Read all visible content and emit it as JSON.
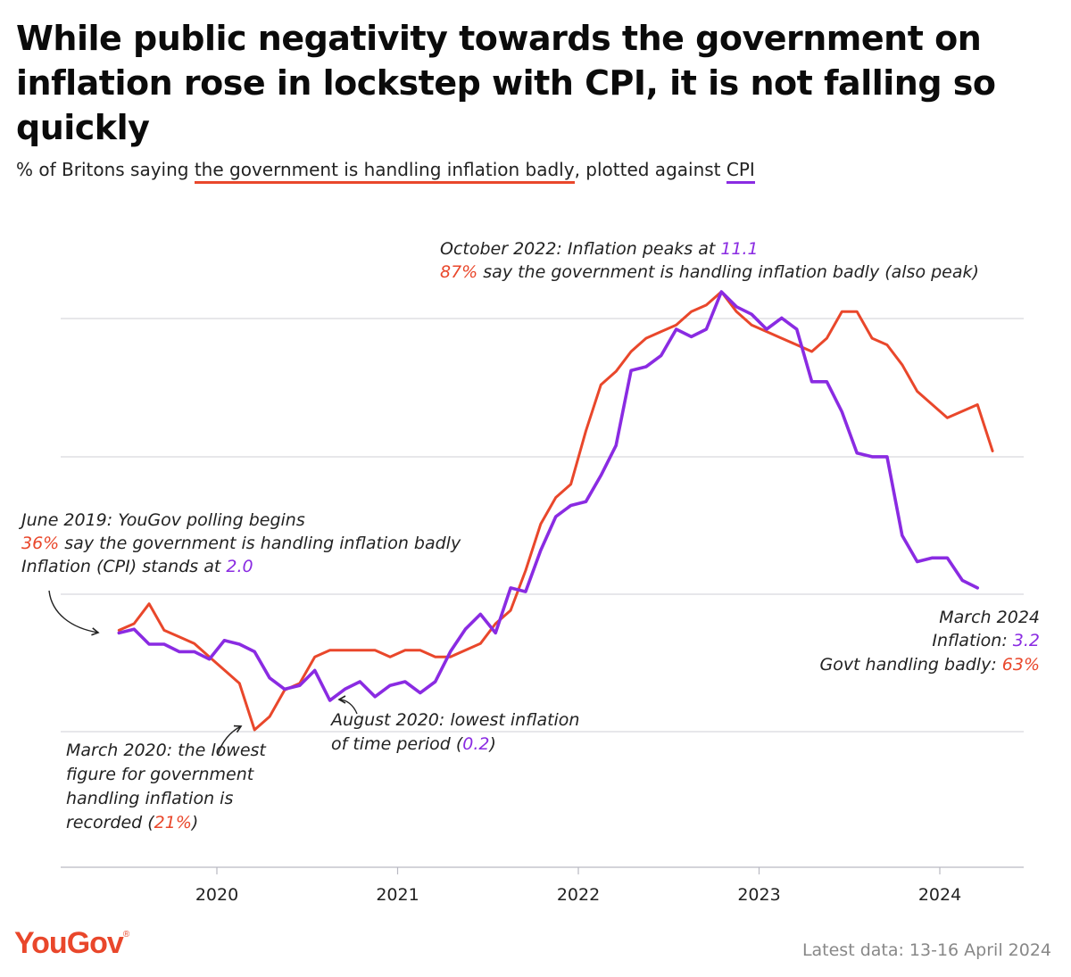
{
  "title": "While public negativity towards the government on inflation rose in lockstep with CPI, it is not falling so quickly",
  "subtitle": {
    "prefix": "% of Britons saying ",
    "series_red": "the government is handling inflation badly",
    "middle": ", plotted against ",
    "series_purple": "CPI"
  },
  "colors": {
    "red": "#e9472b",
    "purple": "#8a2be2",
    "grid": "#cfcfd6"
  },
  "annotations": {
    "peak": {
      "line1_prefix": "October 2022: Inflation peaks at ",
      "line1_value": "11.1",
      "line2_value": "87%",
      "line2_suffix": " say the government is handling inflation badly (also peak)"
    },
    "start": {
      "line1": "June 2019: YouGov polling begins",
      "line2_value": "36%",
      "line2_suffix": " say the government is handling inflation badly",
      "line3_prefix": "Inflation (CPI) stands at ",
      "line3_value": "2.0"
    },
    "march2020": {
      "line1": "March 2020: the lowest",
      "line2": "figure for government",
      "line3": "handling inflation is",
      "line4_prefix": "recorded (",
      "line4_value": "21%",
      "line4_suffix": ")"
    },
    "august2020": {
      "line1": "August 2020: lowest inflation",
      "line2_prefix": "of time period (",
      "line2_value": "0.2",
      "line2_suffix": ")"
    },
    "latest": {
      "line1": "March 2024",
      "line2_prefix": "Inflation: ",
      "line2_value": "3.2",
      "line3_prefix": "Govt handling badly: ",
      "line3_value": "63%"
    }
  },
  "logo": "YouGov",
  "footer": "Latest data: 13-16 April 2024",
  "chart_data": {
    "type": "line",
    "x_ticks": [
      "2020",
      "2021",
      "2022",
      "2023",
      "2024"
    ],
    "xlim": [
      "2019-03",
      "2024-07"
    ],
    "grid": true,
    "legend": "none",
    "series": [
      {
        "color": "#e9472b",
        "x": [
          "2019-06",
          "2019-07",
          "2019-08",
          "2019-09",
          "2019-10",
          "2019-11",
          "2019-12",
          "2020-01",
          "2020-02",
          "2020-03",
          "2020-04",
          "2020-05",
          "2020-06",
          "2020-07",
          "2020-08",
          "2020-09",
          "2020-10",
          "2020-11",
          "2020-12",
          "2021-01",
          "2021-02",
          "2021-03",
          "2021-04",
          "2021-05",
          "2021-06",
          "2021-07",
          "2021-08",
          "2021-09",
          "2021-10",
          "2021-11",
          "2021-12",
          "2022-01",
          "2022-02",
          "2022-03",
          "2022-04",
          "2022-05",
          "2022-06",
          "2022-07",
          "2022-08",
          "2022-09",
          "2022-10",
          "2022-11",
          "2022-12",
          "2023-01",
          "2023-02",
          "2023-03",
          "2023-04",
          "2023-05",
          "2023-06",
          "2023-07",
          "2023-08",
          "2023-09",
          "2023-10",
          "2023-11",
          "2023-12",
          "2024-01",
          "2024-02",
          "2024-03",
          "2024-04"
        ],
        "y": [
          36,
          37,
          40,
          36,
          35,
          34,
          32,
          30,
          28,
          21,
          23,
          27,
          28,
          32,
          33,
          33,
          33,
          33,
          32,
          33,
          33,
          32,
          32,
          33,
          34,
          37,
          39,
          45,
          52,
          56,
          58,
          66,
          73,
          75,
          78,
          80,
          81,
          82,
          84,
          85,
          87,
          84,
          82,
          81,
          80,
          79,
          78,
          80,
          84,
          84,
          80,
          79,
          76,
          72,
          70,
          68,
          69,
          70,
          63
        ]
      },
      {
        "color": "#8a2be2",
        "x": [
          "2019-06",
          "2019-07",
          "2019-08",
          "2019-09",
          "2019-10",
          "2019-11",
          "2019-12",
          "2020-01",
          "2020-02",
          "2020-03",
          "2020-04",
          "2020-05",
          "2020-06",
          "2020-07",
          "2020-08",
          "2020-09",
          "2020-10",
          "2020-11",
          "2020-12",
          "2021-01",
          "2021-02",
          "2021-03",
          "2021-04",
          "2021-05",
          "2021-06",
          "2021-07",
          "2021-08",
          "2021-09",
          "2021-10",
          "2021-11",
          "2021-12",
          "2022-01",
          "2022-02",
          "2022-03",
          "2022-04",
          "2022-05",
          "2022-06",
          "2022-07",
          "2022-08",
          "2022-09",
          "2022-10",
          "2022-11",
          "2022-12",
          "2023-01",
          "2023-02",
          "2023-03",
          "2023-04",
          "2023-05",
          "2023-06",
          "2023-07",
          "2023-08",
          "2023-09",
          "2023-10",
          "2023-11",
          "2023-12",
          "2024-01",
          "2024-02",
          "2024-03"
        ],
        "y": [
          2.0,
          2.1,
          1.7,
          1.7,
          1.5,
          1.5,
          1.3,
          1.8,
          1.7,
          1.5,
          0.8,
          0.5,
          0.6,
          1.0,
          0.2,
          0.5,
          0.7,
          0.3,
          0.6,
          0.7,
          0.4,
          0.7,
          1.5,
          2.1,
          2.5,
          2.0,
          3.2,
          3.1,
          4.2,
          5.1,
          5.4,
          5.5,
          6.2,
          7.0,
          9.0,
          9.1,
          9.4,
          10.1,
          9.9,
          10.1,
          11.1,
          10.7,
          10.5,
          10.1,
          10.4,
          10.1,
          8.7,
          8.7,
          7.9,
          6.8,
          6.7,
          6.7,
          4.6,
          3.9,
          4.0,
          4.0,
          3.4,
          3.2
        ]
      }
    ]
  }
}
